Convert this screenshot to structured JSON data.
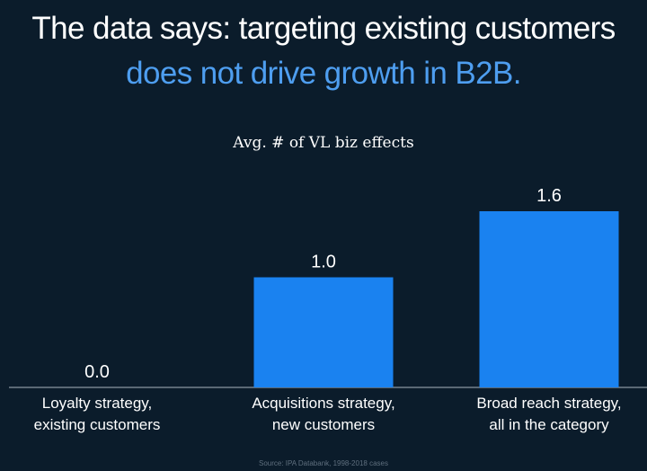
{
  "title": {
    "line1": "The data says: targeting existing customers",
    "line2": "does not drive growth in B2B.",
    "line2_color": "#4e9ef0"
  },
  "chart_data": {
    "type": "bar",
    "title": "Avg. # of VL biz effects",
    "categories": [
      [
        "Loyalty strategy,",
        "existing customers"
      ],
      [
        "Acquisitions strategy,",
        "new customers"
      ],
      [
        "Broad reach strategy,",
        "all in the category"
      ]
    ],
    "values": [
      0.0,
      1.0,
      1.6
    ],
    "value_labels": [
      "0.0",
      "1.0",
      "1.6"
    ],
    "bar_color": "#1a82f0",
    "ylim": [
      0,
      1.8
    ],
    "xlabel": "",
    "ylabel": "",
    "grid": false
  },
  "source": "Source: IPA Databank, 1998-2018 cases"
}
